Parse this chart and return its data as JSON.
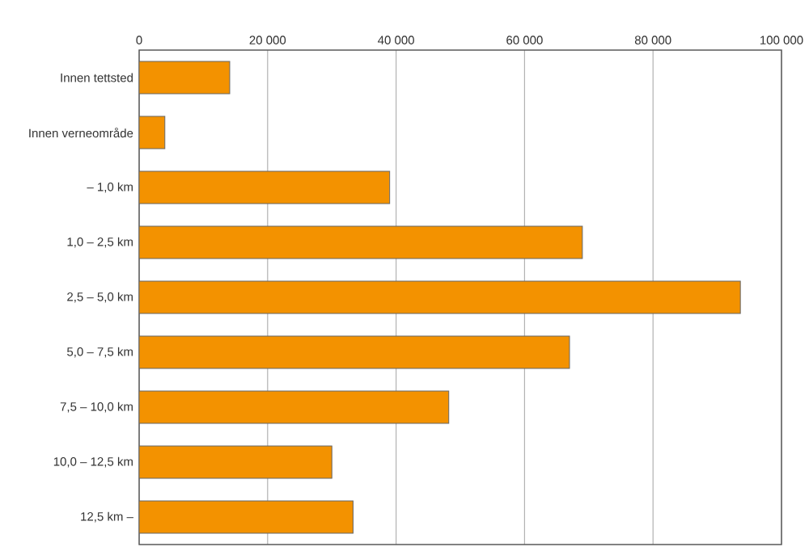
{
  "chart_data": {
    "type": "bar",
    "orientation": "horizontal",
    "categories": [
      "Innen tettsted",
      "Innen verneområde",
      "– 1,0 km",
      "1,0 – 2,5 km",
      "2,5 – 5,0 km",
      "5,0 – 7,5 km",
      "7,5 – 10,0 km",
      "10,0 – 12,5 km",
      "12,5 km –"
    ],
    "values": [
      14100,
      4000,
      39000,
      69000,
      93600,
      67000,
      48200,
      30000,
      33300
    ],
    "color": "#f39200",
    "xlim": [
      0,
      100000
    ],
    "xticks": [
      0,
      {
        "value": 20000,
        "label": "20 000"
      },
      {
        "value": 40000,
        "label": "40 000"
      },
      {
        "value": 60000,
        "label": "60 000"
      },
      {
        "value": 80000,
        "label": "80 000"
      },
      {
        "value": 100000,
        "label": "100 000"
      }
    ],
    "grid": "x"
  }
}
